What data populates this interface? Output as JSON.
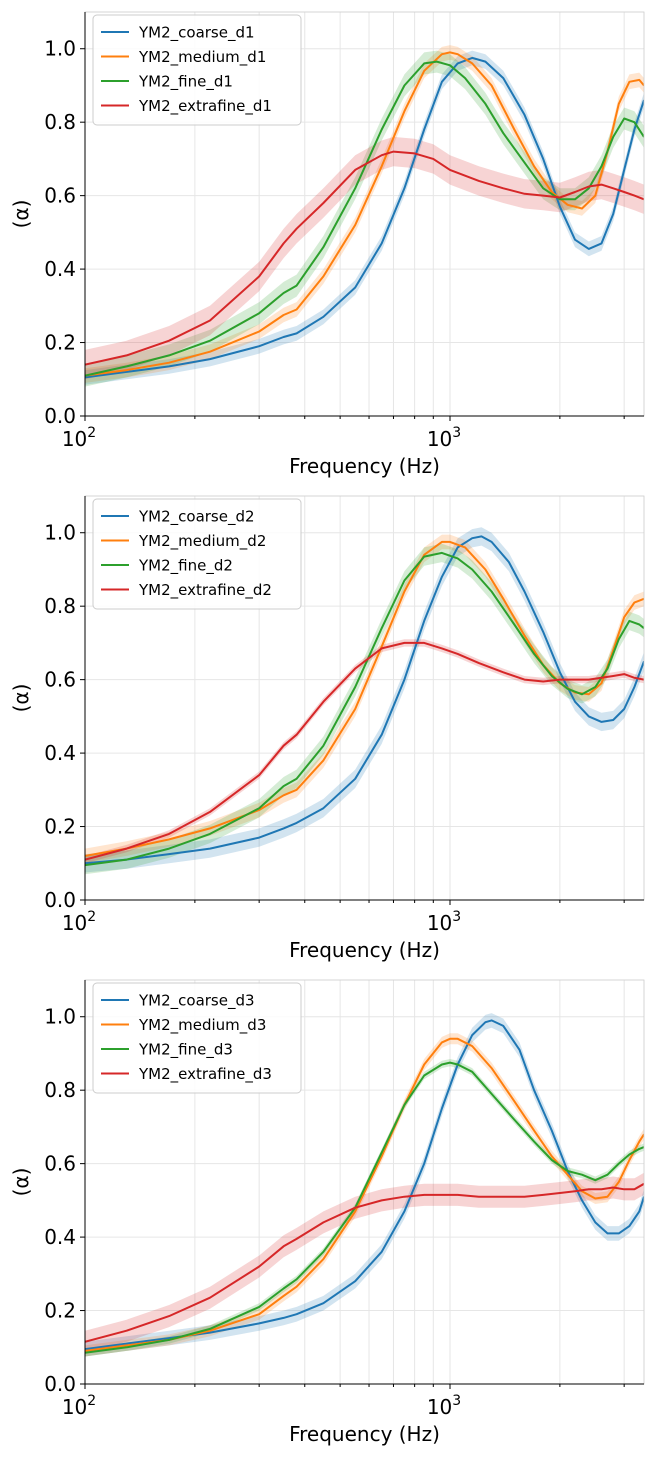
{
  "colors": {
    "coarse": "#1f77b4",
    "medium": "#ff7f0e",
    "fine": "#2ca02c",
    "extrafine": "#d62728",
    "grid": "#e6e6e6",
    "legend_border": "#cccccc"
  },
  "chart_data": [
    {
      "type": "line",
      "xscale": "log",
      "xlim": [
        100,
        3400
      ],
      "ylim": [
        0.0,
        1.1
      ],
      "xlabel": "Frequency (Hz)",
      "ylabel": "(α)",
      "xticks": [
        {
          "value": 100,
          "base": "10",
          "exp": "2"
        },
        {
          "value": 1000,
          "base": "10",
          "exp": "3"
        }
      ],
      "yticks": [
        "0.0",
        "0.2",
        "0.4",
        "0.6",
        "0.8",
        "1.0"
      ],
      "grid": true,
      "legend_position": "upper-left",
      "series": [
        {
          "name": "YM2_coarse_d1",
          "color_key": "coarse",
          "band": 0.02,
          "x": [
            100,
            130,
            170,
            220,
            300,
            350,
            380,
            450,
            550,
            650,
            750,
            850,
            950,
            1050,
            1150,
            1250,
            1400,
            1600,
            1800,
            2000,
            2200,
            2400,
            2600,
            2800,
            3000,
            3200,
            3400
          ],
          "y": [
            0.105,
            0.12,
            0.135,
            0.155,
            0.19,
            0.215,
            0.225,
            0.27,
            0.35,
            0.47,
            0.62,
            0.78,
            0.91,
            0.96,
            0.975,
            0.965,
            0.92,
            0.82,
            0.7,
            0.57,
            0.48,
            0.455,
            0.47,
            0.55,
            0.67,
            0.78,
            0.86
          ]
        },
        {
          "name": "YM2_medium_d1",
          "color_key": "medium",
          "band": 0.02,
          "x": [
            100,
            130,
            170,
            220,
            300,
            350,
            380,
            450,
            550,
            650,
            750,
            850,
            950,
            1000,
            1050,
            1150,
            1300,
            1500,
            1700,
            1900,
            2100,
            2300,
            2500,
            2700,
            2900,
            3100,
            3300,
            3400
          ],
          "y": [
            0.11,
            0.125,
            0.145,
            0.175,
            0.23,
            0.275,
            0.29,
            0.38,
            0.52,
            0.68,
            0.83,
            0.94,
            0.985,
            0.99,
            0.985,
            0.96,
            0.9,
            0.78,
            0.68,
            0.61,
            0.575,
            0.565,
            0.6,
            0.72,
            0.85,
            0.91,
            0.915,
            0.9
          ]
        },
        {
          "name": "YM2_fine_d1",
          "color_key": "fine",
          "band": 0.03,
          "x": [
            100,
            130,
            170,
            220,
            300,
            350,
            380,
            450,
            550,
            650,
            750,
            850,
            920,
            1000,
            1100,
            1250,
            1400,
            1600,
            1800,
            2000,
            2200,
            2400,
            2600,
            2800,
            3000,
            3200,
            3400
          ],
          "y": [
            0.11,
            0.135,
            0.165,
            0.205,
            0.28,
            0.335,
            0.355,
            0.46,
            0.62,
            0.78,
            0.9,
            0.96,
            0.965,
            0.955,
            0.92,
            0.85,
            0.77,
            0.69,
            0.62,
            0.59,
            0.59,
            0.62,
            0.68,
            0.76,
            0.81,
            0.8,
            0.76
          ]
        },
        {
          "name": "YM2_extrafine_d1",
          "color_key": "extrafine",
          "band": 0.04,
          "x": [
            100,
            130,
            170,
            220,
            300,
            350,
            380,
            450,
            550,
            650,
            700,
            800,
            900,
            1000,
            1200,
            1400,
            1600,
            1800,
            2000,
            2200,
            2400,
            2600,
            2800,
            3000,
            3200,
            3400
          ],
          "y": [
            0.14,
            0.165,
            0.205,
            0.26,
            0.38,
            0.47,
            0.51,
            0.58,
            0.67,
            0.71,
            0.72,
            0.715,
            0.7,
            0.67,
            0.64,
            0.62,
            0.605,
            0.6,
            0.595,
            0.61,
            0.625,
            0.63,
            0.62,
            0.61,
            0.6,
            0.59
          ]
        }
      ]
    },
    {
      "type": "line",
      "xscale": "log",
      "xlim": [
        100,
        3400
      ],
      "ylim": [
        0.0,
        1.1
      ],
      "xlabel": "Frequency (Hz)",
      "ylabel": "(α)",
      "xticks": [
        {
          "value": 100,
          "base": "10",
          "exp": "2"
        },
        {
          "value": 1000,
          "base": "10",
          "exp": "3"
        }
      ],
      "yticks": [
        "0.0",
        "0.2",
        "0.4",
        "0.6",
        "0.8",
        "1.0"
      ],
      "grid": true,
      "legend_position": "upper-left",
      "series": [
        {
          "name": "YM2_coarse_d2",
          "color_key": "coarse",
          "band": 0.025,
          "x": [
            100,
            130,
            170,
            220,
            300,
            350,
            380,
            450,
            550,
            650,
            750,
            850,
            950,
            1050,
            1150,
            1220,
            1300,
            1450,
            1600,
            1800,
            2000,
            2200,
            2400,
            2600,
            2800,
            3000,
            3200,
            3400
          ],
          "y": [
            0.1,
            0.11,
            0.125,
            0.14,
            0.17,
            0.195,
            0.21,
            0.25,
            0.33,
            0.45,
            0.6,
            0.76,
            0.88,
            0.96,
            0.985,
            0.99,
            0.975,
            0.92,
            0.84,
            0.73,
            0.62,
            0.54,
            0.5,
            0.485,
            0.49,
            0.52,
            0.58,
            0.65
          ]
        },
        {
          "name": "YM2_medium_d2",
          "color_key": "medium",
          "band": 0.02,
          "x": [
            100,
            130,
            170,
            220,
            300,
            350,
            380,
            450,
            550,
            650,
            750,
            850,
            950,
            1000,
            1100,
            1250,
            1400,
            1600,
            1800,
            2000,
            2200,
            2400,
            2600,
            2800,
            3000,
            3200,
            3400
          ],
          "y": [
            0.12,
            0.14,
            0.165,
            0.195,
            0.245,
            0.285,
            0.3,
            0.38,
            0.52,
            0.69,
            0.84,
            0.94,
            0.975,
            0.975,
            0.96,
            0.9,
            0.82,
            0.72,
            0.64,
            0.59,
            0.565,
            0.56,
            0.59,
            0.68,
            0.77,
            0.81,
            0.82
          ]
        },
        {
          "name": "YM2_fine_d2",
          "color_key": "fine",
          "band": 0.025,
          "x": [
            100,
            130,
            170,
            220,
            300,
            350,
            380,
            450,
            550,
            650,
            750,
            850,
            950,
            1050,
            1150,
            1300,
            1500,
            1700,
            1900,
            2100,
            2300,
            2500,
            2700,
            2900,
            3100,
            3300,
            3400
          ],
          "y": [
            0.095,
            0.11,
            0.14,
            0.18,
            0.25,
            0.31,
            0.33,
            0.42,
            0.58,
            0.74,
            0.87,
            0.935,
            0.945,
            0.93,
            0.9,
            0.84,
            0.75,
            0.67,
            0.61,
            0.575,
            0.56,
            0.58,
            0.63,
            0.71,
            0.76,
            0.75,
            0.74
          ]
        },
        {
          "name": "YM2_extrafine_d2",
          "color_key": "extrafine",
          "band": 0.01,
          "x": [
            100,
            130,
            170,
            220,
            300,
            350,
            380,
            450,
            550,
            650,
            750,
            850,
            950,
            1050,
            1200,
            1400,
            1600,
            1800,
            2000,
            2200,
            2400,
            2600,
            2800,
            3000,
            3200,
            3400
          ],
          "y": [
            0.11,
            0.14,
            0.18,
            0.24,
            0.34,
            0.42,
            0.45,
            0.54,
            0.63,
            0.685,
            0.7,
            0.7,
            0.685,
            0.67,
            0.645,
            0.62,
            0.6,
            0.595,
            0.6,
            0.6,
            0.6,
            0.605,
            0.61,
            0.615,
            0.605,
            0.6
          ]
        }
      ]
    },
    {
      "type": "line",
      "xscale": "log",
      "xlim": [
        100,
        3400
      ],
      "ylim": [
        0.0,
        1.1
      ],
      "xlabel": "Frequency (Hz)",
      "ylabel": "(α)",
      "xticks": [
        {
          "value": 100,
          "base": "10",
          "exp": "2"
        },
        {
          "value": 1000,
          "base": "10",
          "exp": "3"
        }
      ],
      "yticks": [
        "0.0",
        "0.2",
        "0.4",
        "0.6",
        "0.8",
        "1.0"
      ],
      "grid": true,
      "legend_position": "upper-left",
      "series": [
        {
          "name": "YM2_coarse_d3",
          "color_key": "coarse",
          "band": 0.02,
          "x": [
            100,
            130,
            170,
            220,
            300,
            350,
            380,
            450,
            550,
            650,
            750,
            850,
            950,
            1050,
            1150,
            1250,
            1300,
            1400,
            1550,
            1700,
            1900,
            2100,
            2300,
            2500,
            2700,
            2900,
            3100,
            3300,
            3400
          ],
          "y": [
            0.095,
            0.11,
            0.125,
            0.14,
            0.165,
            0.18,
            0.19,
            0.22,
            0.28,
            0.36,
            0.47,
            0.6,
            0.75,
            0.87,
            0.95,
            0.985,
            0.99,
            0.975,
            0.91,
            0.8,
            0.69,
            0.58,
            0.5,
            0.44,
            0.41,
            0.41,
            0.43,
            0.47,
            0.51
          ]
        },
        {
          "name": "YM2_medium_d3",
          "color_key": "medium",
          "band": 0.015,
          "x": [
            100,
            130,
            170,
            220,
            300,
            350,
            380,
            450,
            550,
            650,
            750,
            850,
            950,
            1000,
            1050,
            1150,
            1300,
            1500,
            1700,
            1900,
            2100,
            2300,
            2500,
            2700,
            2900,
            3100,
            3300,
            3400
          ],
          "y": [
            0.09,
            0.105,
            0.12,
            0.145,
            0.19,
            0.24,
            0.265,
            0.34,
            0.47,
            0.62,
            0.76,
            0.87,
            0.93,
            0.94,
            0.94,
            0.92,
            0.86,
            0.77,
            0.69,
            0.62,
            0.57,
            0.525,
            0.505,
            0.51,
            0.55,
            0.61,
            0.66,
            0.68
          ]
        },
        {
          "name": "YM2_fine_d3",
          "color_key": "fine",
          "band": 0.01,
          "x": [
            100,
            130,
            170,
            220,
            300,
            350,
            380,
            450,
            550,
            650,
            750,
            850,
            950,
            1000,
            1050,
            1150,
            1300,
            1500,
            1700,
            1900,
            2100,
            2300,
            2500,
            2700,
            2900,
            3100,
            3300,
            3400
          ],
          "y": [
            0.085,
            0.1,
            0.12,
            0.15,
            0.21,
            0.26,
            0.285,
            0.36,
            0.48,
            0.63,
            0.76,
            0.84,
            0.87,
            0.875,
            0.87,
            0.85,
            0.79,
            0.72,
            0.66,
            0.61,
            0.58,
            0.57,
            0.555,
            0.57,
            0.6,
            0.625,
            0.64,
            0.645
          ]
        },
        {
          "name": "YM2_extrafine_d3",
          "color_key": "extrafine",
          "band": 0.03,
          "x": [
            100,
            130,
            170,
            220,
            300,
            350,
            380,
            450,
            550,
            650,
            750,
            850,
            950,
            1050,
            1200,
            1400,
            1600,
            1800,
            2000,
            2200,
            2400,
            2600,
            2800,
            3000,
            3200,
            3400
          ],
          "y": [
            0.115,
            0.145,
            0.185,
            0.235,
            0.32,
            0.375,
            0.395,
            0.44,
            0.48,
            0.5,
            0.51,
            0.515,
            0.515,
            0.515,
            0.51,
            0.51,
            0.51,
            0.515,
            0.52,
            0.525,
            0.53,
            0.53,
            0.535,
            0.53,
            0.53,
            0.545
          ]
        }
      ]
    }
  ]
}
